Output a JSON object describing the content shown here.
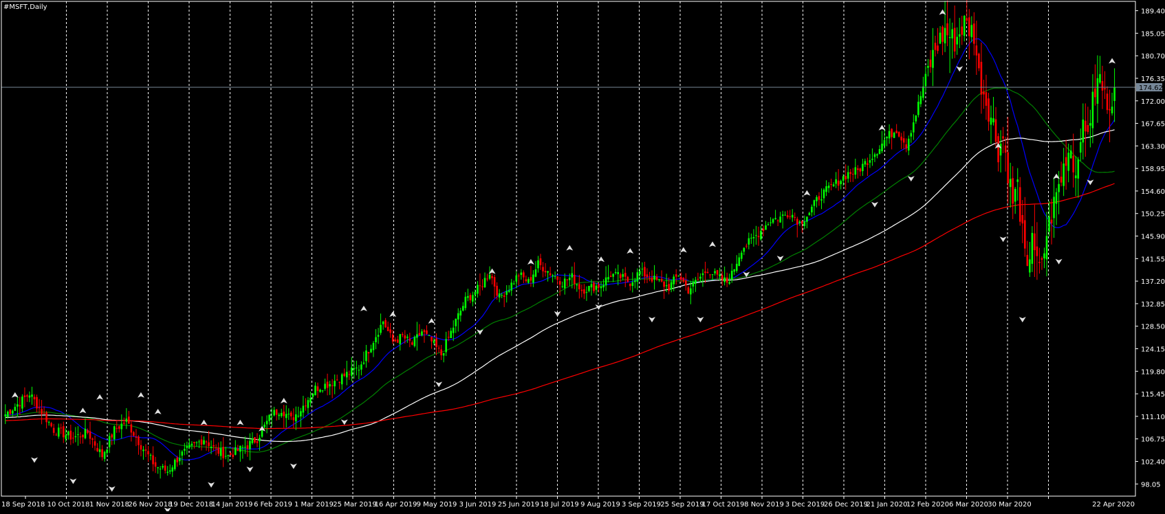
{
  "window": {
    "title": "#MSFT,Daily"
  },
  "colors": {
    "background": "#000000",
    "frame": "#ffffff",
    "grid": "#ffffff",
    "bull": "#00ff00",
    "bear": "#ff0000",
    "fractal": "#e0e0e0",
    "price_line": "#778899",
    "price_label_bg": "#778899",
    "price_label_text": "#000000"
  },
  "chart_data": {
    "type": "candlestick",
    "title": "#MSFT,Daily",
    "symbol": "#MSFT",
    "timeframe": "Daily",
    "ylim": [
      95.7,
      191.2
    ],
    "grid": "vertical dashed",
    "y_ticks": [
      "189.40",
      "185.05",
      "180.70",
      "176.35",
      "172.00",
      "167.65",
      "163.30",
      "158.95",
      "154.60",
      "150.25",
      "145.90",
      "141.55",
      "137.20",
      "132.85",
      "128.50",
      "124.15",
      "119.80",
      "115.45",
      "111.10",
      "106.75",
      "102.40",
      "98.05"
    ],
    "x_ticks": [
      "18 Sep 2018",
      "10 Oct 2018",
      "1 Nov 2018",
      "26 Nov 2018",
      "19 Dec 2018",
      "14 Jan 2019",
      "6 Feb 2019",
      "1 Mar 2019",
      "25 Mar 2019",
      "16 Apr 2019",
      "9 May 2019",
      "3 Jun 2019",
      "25 Jun 2019",
      "18 Jul 2019",
      "9 Aug 2019",
      "3 Sep 2019",
      "25 Sep 2019",
      "17 Oct 2019",
      "8 Nov 2019",
      "3 Dec 2019",
      "26 Dec 2019",
      "21 Jan 2020",
      "12 Feb 2020",
      "6 Mar 2020",
      "30 Mar 2020",
      "22 Apr 2020"
    ],
    "current_price": "174.62",
    "close_keypoints": [
      [
        0,
        111.5
      ],
      [
        6,
        113.8
      ],
      [
        10,
        115.5
      ],
      [
        15,
        112.0
      ],
      [
        20,
        108.5
      ],
      [
        28,
        107.0
      ],
      [
        34,
        108.0
      ],
      [
        40,
        103.5
      ],
      [
        45,
        108.5
      ],
      [
        50,
        110.2
      ],
      [
        56,
        105.5
      ],
      [
        62,
        101.5
      ],
      [
        67,
        100.5
      ],
      [
        72,
        103.5
      ],
      [
        78,
        105.5
      ],
      [
        82,
        106.8
      ],
      [
        87,
        104.5
      ],
      [
        92,
        103.5
      ],
      [
        100,
        105.5
      ],
      [
        104,
        106.8
      ],
      [
        110,
        111.5
      ],
      [
        114,
        112.5
      ],
      [
        118,
        110.5
      ],
      [
        122,
        112.5
      ],
      [
        128,
        116.5
      ],
      [
        134,
        117.5
      ],
      [
        140,
        119.0
      ],
      [
        146,
        120.5
      ],
      [
        150,
        124.0
      ],
      [
        156,
        129.5
      ],
      [
        160,
        125.5
      ],
      [
        164,
        126.5
      ],
      [
        168,
        125.0
      ],
      [
        172,
        127.5
      ],
      [
        176,
        125.5
      ],
      [
        180,
        123.0
      ],
      [
        186,
        129.5
      ],
      [
        190,
        133.5
      ],
      [
        196,
        136.0
      ],
      [
        200,
        139.0
      ],
      [
        204,
        134.0
      ],
      [
        208,
        136.0
      ],
      [
        212,
        138.5
      ],
      [
        216,
        137.0
      ],
      [
        220,
        140.5
      ],
      [
        226,
        138.5
      ],
      [
        230,
        137.0
      ],
      [
        234,
        138.0
      ],
      [
        238,
        135.5
      ],
      [
        242,
        136.0
      ],
      [
        246,
        136.5
      ],
      [
        250,
        138.5
      ],
      [
        254,
        138.0
      ],
      [
        258,
        137.0
      ],
      [
        262,
        139.0
      ],
      [
        266,
        138.0
      ],
      [
        270,
        137.0
      ],
      [
        274,
        136.0
      ],
      [
        278,
        138.5
      ],
      [
        282,
        135.5
      ],
      [
        286,
        137.5
      ],
      [
        290,
        139.5
      ],
      [
        294,
        138.0
      ],
      [
        298,
        137.0
      ],
      [
        300,
        138.5
      ],
      [
        304,
        143.5
      ],
      [
        308,
        145.0
      ],
      [
        312,
        147.0
      ],
      [
        316,
        149.0
      ],
      [
        320,
        149.5
      ],
      [
        324,
        150.5
      ],
      [
        328,
        148.5
      ],
      [
        332,
        150.5
      ],
      [
        336,
        153.5
      ],
      [
        340,
        155.0
      ],
      [
        344,
        156.5
      ],
      [
        348,
        158.0
      ],
      [
        352,
        158.5
      ],
      [
        356,
        160.5
      ],
      [
        360,
        162.5
      ],
      [
        364,
        165.0
      ],
      [
        368,
        166.5
      ],
      [
        372,
        163.5
      ],
      [
        376,
        169.5
      ],
      [
        380,
        176.5
      ],
      [
        384,
        182.0
      ],
      [
        388,
        185.5
      ],
      [
        392,
        183.5
      ],
      [
        396,
        187.0
      ],
      [
        400,
        185.0
      ],
      [
        402,
        177.0
      ],
      [
        406,
        170.5
      ],
      [
        408,
        167.5
      ],
      [
        410,
        162.5
      ],
      [
        412,
        165.0
      ],
      [
        414,
        158.5
      ],
      [
        416,
        152.5
      ],
      [
        418,
        155.5
      ],
      [
        420,
        146.0
      ],
      [
        422,
        138.0
      ],
      [
        424,
        147.5
      ],
      [
        426,
        140.0
      ],
      [
        428,
        139.5
      ],
      [
        430,
        146.5
      ],
      [
        432,
        150.0
      ],
      [
        434,
        154.0
      ],
      [
        436,
        157.0
      ],
      [
        438,
        161.5
      ],
      [
        440,
        163.0
      ],
      [
        442,
        157.5
      ],
      [
        444,
        166.5
      ],
      [
        446,
        165.5
      ],
      [
        448,
        169.0
      ],
      [
        450,
        174.0
      ],
      [
        452,
        176.5
      ],
      [
        454,
        172.5
      ],
      [
        456,
        172.0
      ],
      [
        458,
        174.62
      ]
    ],
    "fractals_up": [
      [
        4,
        114.7
      ],
      [
        32,
        111.7
      ],
      [
        39,
        114.3
      ],
      [
        56,
        114.7
      ],
      [
        63,
        111.5
      ],
      [
        82,
        109.4
      ],
      [
        97,
        109.4
      ],
      [
        106,
        108.2
      ],
      [
        115,
        113.6
      ],
      [
        148,
        131.4
      ],
      [
        160,
        130.3
      ],
      [
        176,
        129.0
      ],
      [
        201,
        138.6
      ],
      [
        217,
        140.4
      ],
      [
        233,
        143.1
      ],
      [
        246,
        140.9
      ],
      [
        258,
        142.5
      ],
      [
        280,
        142.7
      ],
      [
        292,
        143.8
      ],
      [
        331,
        153.7
      ],
      [
        362,
        166.3
      ],
      [
        387,
        188.6
      ],
      [
        410,
        162.8
      ],
      [
        434,
        156.9
      ],
      [
        457,
        179.2
      ]
    ],
    "fractals_down": [
      [
        12,
        103.2
      ],
      [
        28,
        99.1
      ],
      [
        44,
        97.6
      ],
      [
        67,
        93.5
      ],
      [
        85,
        98.4
      ],
      [
        101,
        101.4
      ],
      [
        119,
        102.0
      ],
      [
        140,
        110.5
      ],
      [
        179,
        117.8
      ],
      [
        196,
        127.9
      ],
      [
        228,
        131.4
      ],
      [
        245,
        132.7
      ],
      [
        267,
        130.3
      ],
      [
        287,
        130.3
      ],
      [
        306,
        139.0
      ],
      [
        320,
        142.1
      ],
      [
        359,
        152.5
      ],
      [
        374,
        157.5
      ],
      [
        394,
        178.7
      ],
      [
        412,
        145.8
      ],
      [
        420,
        130.3
      ],
      [
        435,
        141.5
      ],
      [
        448,
        156.8
      ]
    ],
    "moving_averages": [
      {
        "color": "#0000ff",
        "period_hint": "fast"
      },
      {
        "color": "#008000",
        "period_hint": "medium"
      },
      {
        "color": "#ffffff",
        "period_hint": "slow"
      },
      {
        "color": "#ff0000",
        "period_hint": "long"
      }
    ]
  }
}
